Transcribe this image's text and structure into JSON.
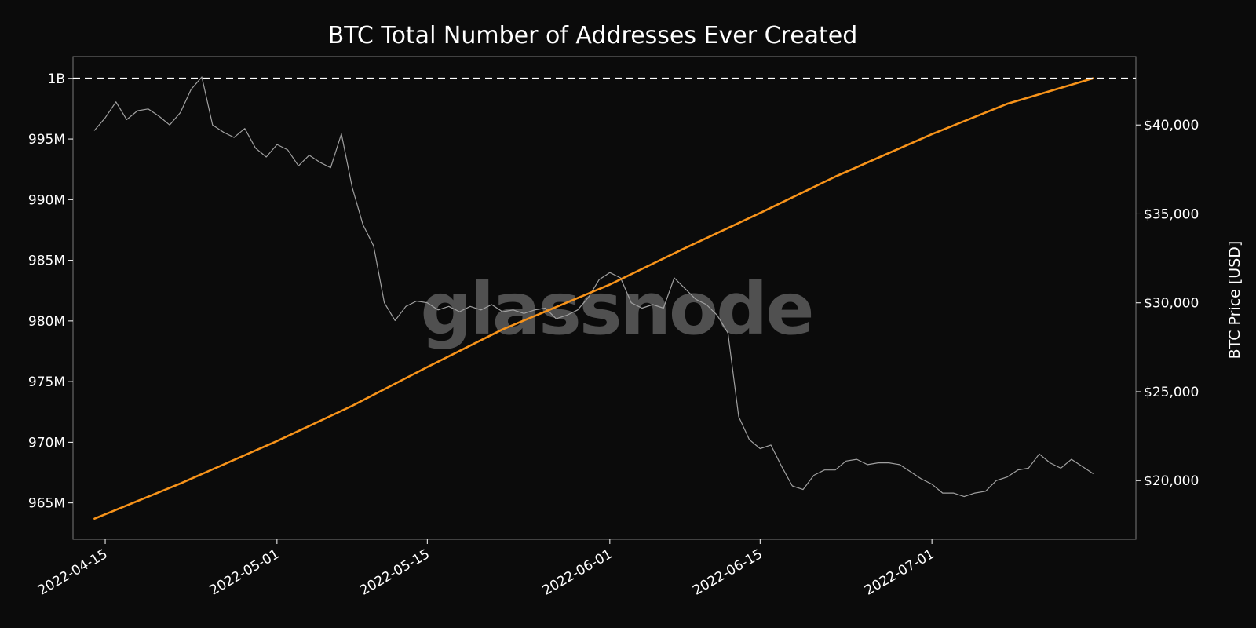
{
  "chart_data": {
    "type": "line",
    "title": "BTC Total Number of Addresses Ever Created",
    "watermark": "glassnode",
    "background_color": "#0b0b0b",
    "x_axis": {
      "type": "date",
      "range": [
        "2022-04-12",
        "2022-07-20"
      ],
      "ticks": [
        "2022-04-15",
        "2022-05-01",
        "2022-05-15",
        "2022-06-01",
        "2022-06-15",
        "2022-07-01"
      ]
    },
    "y_left": {
      "range": [
        962000000,
        1001800000
      ],
      "ticks": [
        {
          "value": 965000000,
          "label": "965M"
        },
        {
          "value": 970000000,
          "label": "970M"
        },
        {
          "value": 975000000,
          "label": "975M"
        },
        {
          "value": 980000000,
          "label": "980M"
        },
        {
          "value": 985000000,
          "label": "985M"
        },
        {
          "value": 990000000,
          "label": "990M"
        },
        {
          "value": 995000000,
          "label": "995M"
        },
        {
          "value": 1000000000,
          "label": "1B"
        }
      ]
    },
    "y_right": {
      "label": "BTC Price [USD]",
      "range": [
        16700,
        43850
      ],
      "ticks": [
        {
          "value": 20000,
          "label": "$20,000"
        },
        {
          "value": 25000,
          "label": "$25,000"
        },
        {
          "value": 30000,
          "label": "$30,000"
        },
        {
          "value": 35000,
          "label": "$35,000"
        },
        {
          "value": 40000,
          "label": "$40,000"
        }
      ]
    },
    "reference_line": {
      "axis": "left",
      "value": 1000000000,
      "style": "dashed",
      "color": "#ffffff"
    },
    "series": [
      {
        "axis": "left",
        "color": "#f7931a",
        "x": [
          "2022-04-14",
          "2022-04-22",
          "2022-05-01",
          "2022-05-08",
          "2022-05-15",
          "2022-05-22",
          "2022-06-01",
          "2022-06-08",
          "2022-06-15",
          "2022-06-22",
          "2022-07-01",
          "2022-07-08",
          "2022-07-16"
        ],
        "values": [
          963700000,
          966600000,
          970100000,
          973000000,
          976200000,
          979300000,
          983000000,
          986000000,
          988900000,
          991900000,
          995400000,
          997900000,
          1000000000
        ]
      },
      {
        "axis": "right",
        "color": "#a0a0a0",
        "x": [
          "2022-04-14",
          "2022-04-15",
          "2022-04-16",
          "2022-04-17",
          "2022-04-18",
          "2022-04-19",
          "2022-04-20",
          "2022-04-21",
          "2022-04-22",
          "2022-04-23",
          "2022-04-24",
          "2022-04-25",
          "2022-04-26",
          "2022-04-27",
          "2022-04-28",
          "2022-04-29",
          "2022-04-30",
          "2022-05-01",
          "2022-05-02",
          "2022-05-03",
          "2022-05-04",
          "2022-05-05",
          "2022-05-06",
          "2022-05-07",
          "2022-05-08",
          "2022-05-09",
          "2022-05-10",
          "2022-05-11",
          "2022-05-12",
          "2022-05-13",
          "2022-05-14",
          "2022-05-15",
          "2022-05-16",
          "2022-05-17",
          "2022-05-18",
          "2022-05-19",
          "2022-05-20",
          "2022-05-21",
          "2022-05-22",
          "2022-05-23",
          "2022-05-24",
          "2022-05-25",
          "2022-05-26",
          "2022-05-27",
          "2022-05-28",
          "2022-05-29",
          "2022-05-30",
          "2022-05-31",
          "2022-06-01",
          "2022-06-02",
          "2022-06-03",
          "2022-06-04",
          "2022-06-05",
          "2022-06-06",
          "2022-06-07",
          "2022-06-08",
          "2022-06-09",
          "2022-06-10",
          "2022-06-11",
          "2022-06-12",
          "2022-06-13",
          "2022-06-14",
          "2022-06-15",
          "2022-06-16",
          "2022-06-17",
          "2022-06-18",
          "2022-06-19",
          "2022-06-20",
          "2022-06-21",
          "2022-06-22",
          "2022-06-23",
          "2022-06-24",
          "2022-06-25",
          "2022-06-26",
          "2022-06-27",
          "2022-06-28",
          "2022-06-29",
          "2022-06-30",
          "2022-07-01",
          "2022-07-02",
          "2022-07-03",
          "2022-07-04",
          "2022-07-05",
          "2022-07-06",
          "2022-07-07",
          "2022-07-08",
          "2022-07-09",
          "2022-07-10",
          "2022-07-11",
          "2022-07-12",
          "2022-07-13",
          "2022-07-14",
          "2022-07-15",
          "2022-07-16"
        ],
        "values": [
          39700,
          40400,
          41300,
          40300,
          40800,
          40900,
          40500,
          40000,
          40700,
          42000,
          42700,
          40000,
          39600,
          39300,
          39800,
          38700,
          38200,
          38900,
          38600,
          37700,
          38300,
          37900,
          37600,
          39500,
          36500,
          34400,
          33200,
          30000,
          29000,
          29800,
          30100,
          30000,
          29600,
          29800,
          29500,
          29800,
          29600,
          29900,
          29500,
          29600,
          29400,
          29600,
          29700,
          29100,
          29300,
          29600,
          30300,
          31300,
          31700,
          31400,
          30000,
          29700,
          29900,
          29700,
          31400,
          30800,
          30200,
          29900,
          29300,
          28300,
          23600,
          22300,
          21800,
          22000,
          20800,
          19700,
          19500,
          20300,
          20600,
          20600,
          21100,
          21200,
          20900,
          21000,
          21000,
          20900,
          20500,
          20100,
          19800,
          19300,
          19300,
          19100,
          19300,
          19400,
          20000,
          20200,
          20600,
          20700,
          21500,
          21000,
          20700,
          21200,
          20800,
          20400
        ]
      }
    ]
  }
}
